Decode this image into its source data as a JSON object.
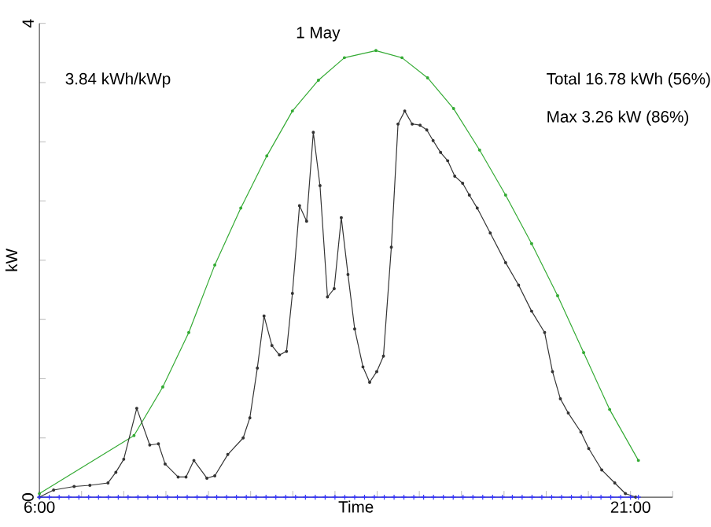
{
  "chart_data": {
    "type": "line",
    "title": "1 May",
    "xlabel": "Time",
    "ylabel": "kW",
    "annotations": [
      "3.84 kWh/kWp",
      "Total 16.78 kWh (56%)",
      "Max 3.26 kW (86%)"
    ],
    "xlim": [
      6,
      22.07
    ],
    "xticks": [
      {
        "value": 6,
        "label": "6:00"
      },
      {
        "value": 7.07,
        "label": null
      },
      {
        "value": 8.14,
        "label": null
      },
      {
        "value": 9.21,
        "label": null
      },
      {
        "value": 10.29,
        "label": null
      },
      {
        "value": 11.36,
        "label": null
      },
      {
        "value": 12.43,
        "label": null
      },
      {
        "value": 13.5,
        "label": null
      },
      {
        "value": 14.57,
        "label": null
      },
      {
        "value": 15.64,
        "label": null
      },
      {
        "value": 16.71,
        "label": null
      },
      {
        "value": 17.79,
        "label": null
      },
      {
        "value": 18.86,
        "label": null
      },
      {
        "value": 19.93,
        "label": null
      },
      {
        "value": 21,
        "label": "21:00"
      },
      {
        "value": 22.07,
        "label": null
      }
    ],
    "ylim": [
      0,
      4
    ],
    "yticks": [
      0,
      {
        "value": 0.5,
        "label": null
      },
      {
        "value": 1,
        "label": null
      },
      {
        "value": 1.5,
        "label": null
      },
      {
        "value": 2,
        "label": null
      },
      {
        "value": 2.5,
        "label": null
      },
      {
        "value": 3,
        "label": null
      },
      {
        "value": 3.5,
        "label": null
      },
      4
    ],
    "line_style": "solid",
    "series": [
      {
        "color": "#33aa33",
        "marker": "circle",
        "x": [
          6.0,
          8.4,
          9.13,
          9.79,
          10.45,
          11.11,
          11.77,
          12.42,
          13.08,
          13.74,
          14.54,
          15.2,
          15.85,
          16.51,
          17.17,
          17.83,
          18.49,
          19.15,
          19.81,
          20.47,
          21.2
        ],
        "values": [
          0.03,
          0.52,
          0.93,
          1.39,
          1.96,
          2.44,
          2.88,
          3.26,
          3.52,
          3.71,
          3.77,
          3.71,
          3.54,
          3.28,
          2.93,
          2.55,
          2.14,
          1.7,
          1.22,
          0.74,
          0.31
        ]
      },
      {
        "color": "#333333",
        "marker": "circle",
        "x": [
          6.0,
          6.36,
          6.88,
          7.28,
          7.74,
          7.94,
          8.14,
          8.47,
          8.8,
          9.02,
          9.19,
          9.52,
          9.72,
          9.92,
          10.25,
          10.45,
          10.78,
          11.17,
          11.34,
          11.53,
          11.7,
          11.9,
          12.09,
          12.27,
          12.42,
          12.6,
          12.78,
          12.95,
          13.12,
          13.31,
          13.48,
          13.66,
          13.83,
          14.0,
          14.21,
          14.38,
          14.56,
          14.73,
          14.93,
          15.1,
          15.27,
          15.46,
          15.66,
          15.83,
          15.99,
          16.18,
          16.36,
          16.54,
          16.74,
          16.91,
          17.11,
          17.44,
          17.83,
          18.16,
          18.49,
          18.82,
          19.02,
          19.22,
          19.42,
          19.74,
          19.94,
          20.27,
          20.6,
          20.87,
          21.13
        ],
        "values": [
          0,
          0.06,
          0.09,
          0.1,
          0.12,
          0.21,
          0.32,
          0.75,
          0.44,
          0.45,
          0.28,
          0.17,
          0.17,
          0.31,
          0.16,
          0.18,
          0.36,
          0.5,
          0.67,
          1.09,
          1.53,
          1.28,
          1.2,
          1.23,
          1.72,
          2.46,
          2.33,
          3.08,
          2.63,
          1.69,
          1.76,
          2.36,
          1.88,
          1.42,
          1.1,
          0.97,
          1.06,
          1.19,
          2.11,
          3.15,
          3.26,
          3.15,
          3.14,
          3.1,
          3.01,
          2.91,
          2.84,
          2.71,
          2.65,
          2.55,
          2.44,
          2.23,
          1.98,
          1.79,
          1.57,
          1.39,
          1.06,
          0.83,
          0.71,
          0.55,
          0.41,
          0.23,
          0.12,
          0.03,
          0
        ]
      },
      {
        "color": "#3333ff",
        "marker": "cross",
        "x": [
          6,
          6.25,
          6.5,
          6.75,
          7,
          7.25,
          7.5,
          7.75,
          8,
          8.25,
          8.5,
          8.75,
          9,
          9.25,
          9.5,
          9.75,
          10,
          10.25,
          10.5,
          10.75,
          11,
          11.25,
          11.5,
          11.75,
          12,
          12.25,
          12.5,
          12.75,
          13,
          13.25,
          13.5,
          13.75,
          14,
          14.25,
          14.5,
          14.75,
          15,
          15.25,
          15.5,
          15.75,
          16,
          16.25,
          16.5,
          16.75,
          17,
          17.25,
          17.5,
          17.75,
          18,
          18.25,
          18.5,
          18.75,
          19,
          19.25,
          19.5,
          19.75,
          20,
          20.25,
          20.5,
          20.75,
          21,
          21.2
        ],
        "values": [
          0,
          0,
          0,
          0,
          0,
          0,
          0,
          0,
          0,
          0,
          0,
          0,
          0,
          0,
          0,
          0,
          0,
          0,
          0,
          0,
          0,
          0,
          0,
          0,
          0,
          0,
          0,
          0,
          0,
          0,
          0,
          0,
          0,
          0,
          0,
          0,
          0,
          0,
          0,
          0,
          0,
          0,
          0,
          0,
          0,
          0,
          0,
          0,
          0,
          0,
          0,
          0,
          0,
          0,
          0,
          0,
          0,
          0,
          0,
          0,
          0,
          0
        ]
      }
    ]
  }
}
